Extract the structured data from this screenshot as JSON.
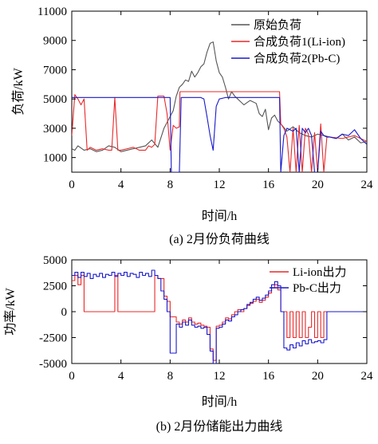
{
  "chart_data": [
    {
      "type": "line",
      "caption": "(a) 2月份负荷曲线",
      "xlabel": "时间/h",
      "ylabel": "负荷/kW",
      "xlim": [
        0,
        24
      ],
      "ylim": [
        0,
        11000
      ],
      "xticks": [
        0,
        4,
        8,
        12,
        16,
        20,
        24
      ],
      "yticks": [
        1000,
        3000,
        5000,
        7000,
        9000,
        11000
      ],
      "grid": false,
      "legend_position": "top-right",
      "series": [
        {
          "name": "原始负荷",
          "color": "#555555",
          "x": [
            0,
            0.25,
            0.5,
            1,
            1.5,
            2,
            2.5,
            3,
            3.5,
            4,
            4.5,
            5,
            5.5,
            6,
            6.5,
            7,
            7.5,
            8,
            8.25,
            8.5,
            8.75,
            9,
            9.25,
            9.5,
            9.75,
            10,
            10.25,
            10.5,
            10.75,
            11,
            11.25,
            11.5,
            11.75,
            12,
            12.25,
            12.5,
            12.75,
            13,
            13.25,
            13.5,
            13.75,
            14,
            14.5,
            15,
            15.25,
            15.5,
            15.75,
            16,
            16.25,
            16.5,
            16.75,
            17,
            17.5,
            18,
            18.5,
            19,
            19.5,
            20,
            20.5,
            21,
            21.5,
            22,
            22.5,
            23,
            23.5,
            24
          ],
          "y": [
            1600,
            1500,
            1800,
            1500,
            1600,
            1400,
            1500,
            1800,
            1700,
            1400,
            1500,
            1600,
            1700,
            1800,
            2200,
            1700,
            3000,
            3800,
            4200,
            5200,
            5800,
            6000,
            6300,
            6200,
            6900,
            6500,
            6800,
            7200,
            7400,
            8200,
            8800,
            8900,
            7600,
            6800,
            6500,
            5800,
            5000,
            5500,
            5200,
            5000,
            4800,
            4600,
            4900,
            4700,
            4000,
            3800,
            4300,
            2900,
            3700,
            3900,
            3500,
            3300,
            2800,
            3100,
            2700,
            2500,
            2400,
            2600,
            2500,
            2400,
            2300,
            2600,
            2200,
            2400,
            2000,
            2100
          ]
        },
        {
          "name": "合成负荷1(Li-ion)",
          "color": "#e8292a",
          "x": [
            0,
            0.25,
            0.5,
            0.75,
            1,
            1.25,
            1.5,
            2,
            2.5,
            3,
            3.25,
            3.5,
            3.75,
            4,
            4.5,
            5,
            5.5,
            6,
            6.25,
            6.5,
            6.75,
            7,
            7.25,
            7.5,
            7.75,
            8,
            8.25,
            8.5,
            8.75,
            8.8,
            9,
            10,
            11,
            12,
            13,
            14,
            15,
            16,
            16.5,
            16.9,
            17,
            17.25,
            17.5,
            17.75,
            18,
            18.25,
            18.5,
            18.75,
            19,
            19.25,
            19.5,
            19.75,
            20,
            20.25,
            20.5,
            20.75,
            21,
            22,
            23,
            24
          ],
          "y": [
            2500,
            5300,
            5000,
            4600,
            5000,
            1500,
            1700,
            1500,
            1600,
            1500,
            1500,
            5100,
            1500,
            1500,
            1600,
            1700,
            1500,
            1500,
            1800,
            1700,
            1900,
            5200,
            5200,
            5200,
            4000,
            1500,
            3200,
            3000,
            3100,
            5500,
            5500,
            5500,
            5500,
            5500,
            5500,
            5500,
            5500,
            5500,
            5500,
            5500,
            3300,
            3000,
            2400,
            0,
            3000,
            0,
            3200,
            0,
            3000,
            2600,
            0,
            2700,
            0,
            3300,
            0,
            2400,
            2400,
            2300,
            2500,
            2100
          ]
        },
        {
          "name": "合成负荷2(Pb-C)",
          "color": "#1919cc",
          "x": [
            0,
            0.5,
            1,
            2,
            3,
            4,
            5,
            6,
            7,
            7.5,
            7.75,
            8,
            8.1,
            8.5,
            8.75,
            8.9,
            9,
            10,
            10.5,
            10.75,
            11,
            11.25,
            11.5,
            11.75,
            12,
            12.5,
            13,
            14,
            15,
            16,
            16.5,
            16.75,
            16.9,
            17,
            17.25,
            17.5,
            18,
            18.25,
            18.5,
            18.75,
            19,
            19.25,
            19.5,
            19.75,
            20,
            20.25,
            20.5,
            20.75,
            21,
            21.5,
            22,
            22.5,
            23,
            23.5,
            24
          ],
          "y": [
            5100,
            5100,
            5100,
            5100,
            5100,
            5100,
            5100,
            5100,
            5100,
            5100,
            5100,
            5100,
            0,
            0,
            0,
            5100,
            5100,
            5100,
            5100,
            5000,
            3800,
            2500,
            1500,
            4500,
            5000,
            5100,
            5100,
            5100,
            5100,
            5100,
            5100,
            5100,
            5100,
            0,
            2500,
            3000,
            2800,
            3000,
            0,
            3000,
            2700,
            3000,
            2500,
            0,
            0,
            2800,
            2500,
            2400,
            2400,
            2300,
            2600,
            2500,
            2900,
            2300,
            1900
          ]
        }
      ]
    },
    {
      "type": "line",
      "caption": "(b) 2月份储能出力曲线",
      "xlabel": "时间/h",
      "ylabel": "功率/kW",
      "xlim": [
        0,
        24
      ],
      "ylim": [
        -5000,
        5000
      ],
      "xticks": [
        0,
        4,
        8,
        12,
        16,
        20,
        24
      ],
      "yticks": [
        -5000,
        -2500,
        0,
        2500,
        5000
      ],
      "grid": false,
      "legend_position": "top-right",
      "series": [
        {
          "name": "Li-ion出力",
          "color": "#e8292a",
          "step": true,
          "x": [
            0,
            0.25,
            0.5,
            0.75,
            1,
            3.5,
            3.75,
            6.75,
            7,
            7.5,
            7.75,
            8,
            8.5,
            8.75,
            9,
            9.25,
            9.5,
            9.75,
            10,
            10.25,
            10.5,
            10.75,
            11,
            11.25,
            11.5,
            11.75,
            12,
            12.25,
            12.5,
            12.75,
            13,
            13.25,
            13.5,
            13.75,
            14,
            14.25,
            14.5,
            14.75,
            15,
            15.25,
            15.5,
            15.75,
            16,
            16.25,
            16.5,
            16.75,
            17,
            17.25,
            17.5,
            17.75,
            18,
            18.25,
            18.5,
            18.75,
            19,
            19.25,
            19.5,
            19.75,
            20,
            20.25,
            20.5,
            20.75,
            21,
            24
          ],
          "y": [
            3000,
            3500,
            2600,
            3500,
            0,
            3500,
            0,
            3500,
            3200,
            1500,
            1000,
            -500,
            -1000,
            -1200,
            -800,
            -1000,
            -600,
            -1000,
            -1200,
            -1100,
            -1300,
            -1400,
            -1500,
            -3600,
            -4700,
            -1400,
            -1300,
            -1000,
            -600,
            -700,
            -300,
            0,
            200,
            0,
            300,
            600,
            800,
            1000,
            1200,
            900,
            1100,
            1400,
            1800,
            2300,
            2600,
            2100,
            0,
            0,
            -2500,
            0,
            -2500,
            0,
            -2500,
            0,
            -2500,
            -1500,
            0,
            -2500,
            0,
            -2500,
            0,
            0,
            0,
            0
          ]
        },
        {
          "name": "Pb-C出力",
          "color": "#1919cc",
          "step": true,
          "x": [
            0,
            0.25,
            0.5,
            0.75,
            1,
            1.25,
            1.5,
            1.75,
            2,
            2.25,
            2.5,
            2.75,
            3,
            3.25,
            3.5,
            3.75,
            4,
            4.25,
            4.5,
            4.75,
            5,
            5.25,
            5.5,
            5.75,
            6,
            6.25,
            6.5,
            6.75,
            7,
            7.25,
            7.5,
            7.75,
            8,
            8.5,
            8.75,
            9,
            9.25,
            9.5,
            9.75,
            10,
            10.25,
            10.5,
            10.75,
            11,
            11.25,
            11.5,
            11.75,
            12,
            12.25,
            12.5,
            12.75,
            13,
            13.25,
            13.5,
            13.75,
            14,
            14.25,
            14.5,
            14.75,
            15,
            15.25,
            15.5,
            15.75,
            16,
            16.25,
            16.5,
            16.75,
            17,
            17.25,
            17.5,
            17.75,
            18,
            18.25,
            18.5,
            18.75,
            19,
            19.25,
            19.5,
            19.75,
            20,
            20.25,
            20.5,
            20.75,
            21,
            24
          ],
          "y": [
            3500,
            3800,
            3300,
            3800,
            3400,
            3700,
            3200,
            3600,
            3400,
            3700,
            3300,
            3600,
            3500,
            3800,
            3400,
            3700,
            3500,
            3800,
            3400,
            3700,
            3600,
            3300,
            3800,
            3500,
            3700,
            3400,
            4000,
            3500,
            3200,
            2000,
            1200,
            0,
            -4000,
            -1200,
            -1500,
            -1000,
            -1300,
            -800,
            -1300,
            -1500,
            -1400,
            -1600,
            -1500,
            -2200,
            -3800,
            -5000,
            -1600,
            -1500,
            -1200,
            -800,
            -900,
            -500,
            -300,
            0,
            200,
            300,
            700,
            900,
            1200,
            1400,
            1100,
            1300,
            1600,
            2000,
            2600,
            2900,
            2500,
            0,
            -3500,
            -3700,
            -3200,
            -3500,
            -3000,
            -3300,
            -2800,
            -3100,
            -2700,
            -3000,
            -2900,
            -2800,
            -3000,
            -2700,
            0,
            0,
            0
          ]
        }
      ]
    }
  ]
}
